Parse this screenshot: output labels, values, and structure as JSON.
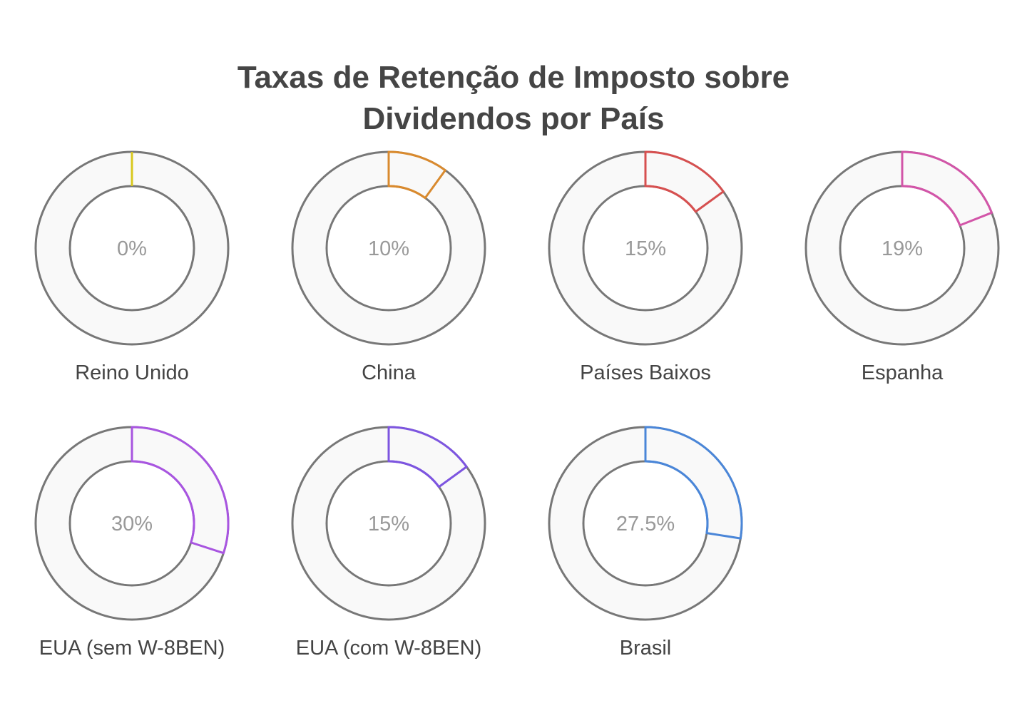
{
  "chart_data": {
    "type": "donut",
    "title_lines": [
      "Taxas de Retenção de Imposto sobre",
      "Dividendos por País"
    ],
    "unit": "%",
    "max": 100,
    "track_color": "#f9f9f9",
    "outline_color": "#777777",
    "items": [
      {
        "label": "Reino Unido",
        "value": 0,
        "display": "0%",
        "color": "#d8c81e"
      },
      {
        "label": "China",
        "value": 10,
        "display": "10%",
        "color": "#d98a2e"
      },
      {
        "label": "Países Baixos",
        "value": 15,
        "display": "15%",
        "color": "#d65050"
      },
      {
        "label": "Espanha",
        "value": 19,
        "display": "19%",
        "color": "#d255a8"
      },
      {
        "label": "EUA (sem W-8BEN)",
        "value": 30,
        "display": "30%",
        "color": "#a855e0"
      },
      {
        "label": "EUA (com W-8BEN)",
        "value": 15,
        "display": "15%",
        "color": "#7d55e0"
      },
      {
        "label": "Brasil",
        "value": 27.5,
        "display": "27.5%",
        "color": "#4a86d8"
      }
    ]
  }
}
